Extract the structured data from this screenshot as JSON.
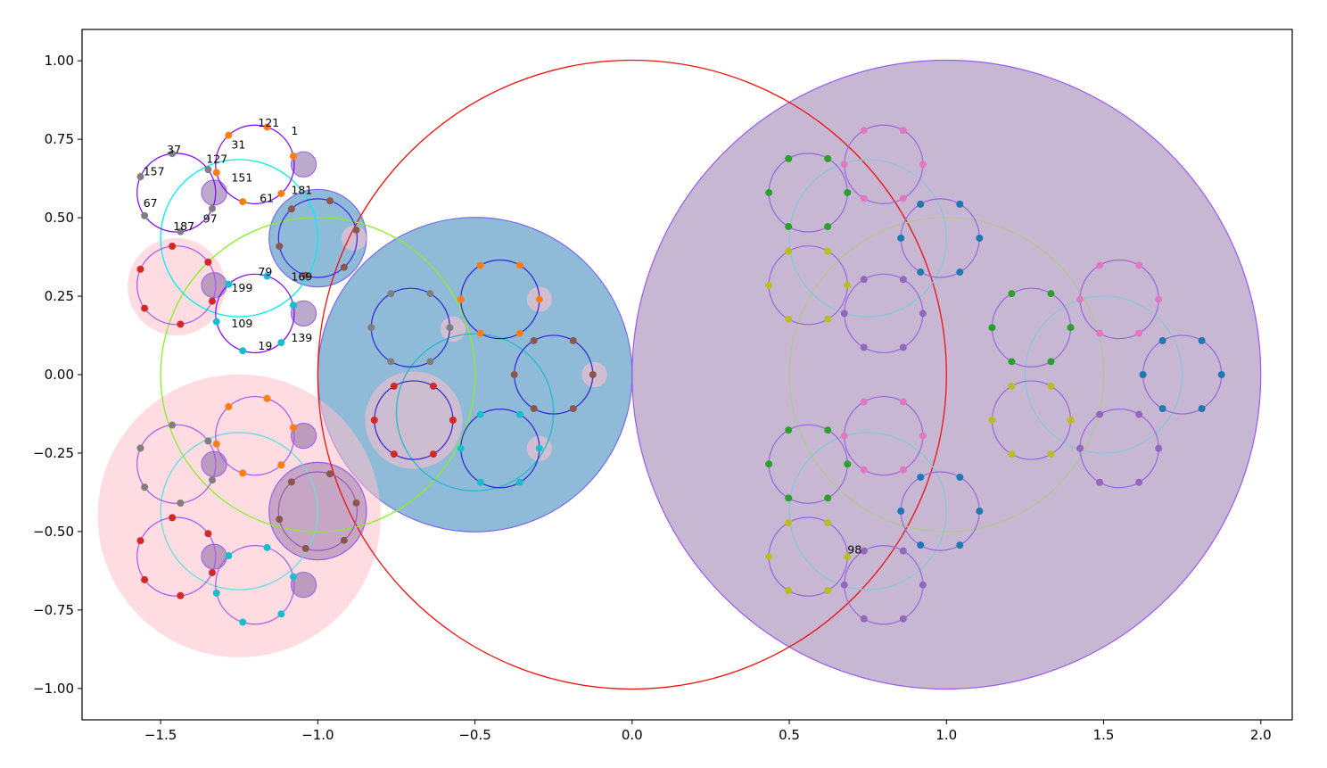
{
  "chart_data": {
    "type": "scatter",
    "title": "",
    "xlabel": "",
    "ylabel": "",
    "xlim": [
      -1.75,
      2.1
    ],
    "ylim": [
      -1.1,
      1.1
    ],
    "grid": false,
    "x_ticks": [
      -1.5,
      -1.0,
      -0.5,
      0.0,
      0.5,
      1.0,
      1.5,
      2.0
    ],
    "x_tick_labels": [
      "−1.5",
      "−1.0",
      "−0.5",
      "0.0",
      "0.5",
      "1.0",
      "1.5",
      "2.0"
    ],
    "y_ticks": [
      1.0,
      0.75,
      0.5,
      0.25,
      0.0,
      -0.25,
      -0.5,
      -0.75,
      -1.0
    ],
    "y_tick_labels": [
      "1.00",
      "0.75",
      "0.50",
      "0.25",
      "0.00",
      "−0.25",
      "−0.50",
      "−0.75",
      "−1.00"
    ],
    "filled_circles": [
      {
        "cx": 1.0,
        "cy": 0.0,
        "r": 1.0,
        "fill": "#8f6fa8",
        "edge": "#9b59f0",
        "alpha": 0.5
      },
      {
        "cx": -0.5,
        "cy": 0.0,
        "r": 0.5,
        "fill": "#1f77b4",
        "edge": "#7b68ee",
        "alpha": 0.5
      },
      {
        "cx": -1.25,
        "cy": -0.45,
        "r": 0.45,
        "fill": "#ffc0cb",
        "edge": "none",
        "alpha": 0.55
      },
      {
        "cx": -1.45,
        "cy": 0.28,
        "r": 0.155,
        "fill": "#ffc0cb",
        "edge": "none",
        "alpha": 0.55
      },
      {
        "cx": -0.695,
        "cy": -0.145,
        "r": 0.155,
        "fill": "#ffc0cb",
        "edge": "none",
        "alpha": 0.55
      },
      {
        "cx": -1.0,
        "cy": 0.435,
        "r": 0.155,
        "fill": "#1f77b4",
        "edge": "#7b68ee",
        "alpha": 0.5
      },
      {
        "cx": -1.0,
        "cy": -0.435,
        "r": 0.155,
        "fill": "#8f6fa8",
        "edge": "#9b59f0",
        "alpha": 0.5
      }
    ],
    "small_disks": [
      {
        "cx": -1.045,
        "cy": 0.67,
        "color": "#8f6fa8"
      },
      {
        "cx": -1.33,
        "cy": 0.58,
        "color": "#8f6fa8"
      },
      {
        "cx": -0.885,
        "cy": 0.435,
        "color": "#ffc0cb"
      },
      {
        "cx": -1.33,
        "cy": 0.285,
        "color": "#8f6fa8"
      },
      {
        "cx": -1.045,
        "cy": 0.195,
        "color": "#8f6fa8"
      },
      {
        "cx": -0.57,
        "cy": 0.145,
        "color": "#ffc0cb"
      },
      {
        "cx": -0.295,
        "cy": 0.24,
        "color": "#ffc0cb"
      },
      {
        "cx": -0.12,
        "cy": 0.0,
        "color": "#ffc0cb"
      },
      {
        "cx": -0.295,
        "cy": -0.235,
        "color": "#ffc0cb"
      },
      {
        "cx": -1.045,
        "cy": -0.195,
        "color": "#8f6fa8"
      },
      {
        "cx": -1.33,
        "cy": -0.285,
        "color": "#8f6fa8"
      },
      {
        "cx": -1.33,
        "cy": -0.58,
        "color": "#8f6fa8"
      },
      {
        "cx": -1.045,
        "cy": -0.67,
        "color": "#8f6fa8"
      }
    ],
    "outline_circles": [
      {
        "cx": 0.0,
        "cy": 0.0,
        "r": 1.0,
        "color": "#ee1111"
      },
      {
        "cx": -1.0,
        "cy": 0.0,
        "r": 0.5,
        "color": "#88ee22"
      },
      {
        "cx": -1.25,
        "cy": 0.435,
        "r": 0.25,
        "color": "#00eeee"
      },
      {
        "cx": -1.25,
        "cy": -0.435,
        "r": 0.25,
        "color": "#66dddd"
      },
      {
        "cx": -0.5,
        "cy": -0.12,
        "r": 0.25,
        "color": "#22bbcc"
      },
      {
        "cx": 1.0,
        "cy": 0.0,
        "r": 0.5,
        "color": "#b0c890"
      },
      {
        "cx": 0.75,
        "cy": 0.435,
        "r": 0.25,
        "color": "#88c8d8"
      },
      {
        "cx": 0.75,
        "cy": -0.435,
        "r": 0.25,
        "color": "#88c8d8"
      },
      {
        "cx": 1.5,
        "cy": 0.0,
        "r": 0.25,
        "color": "#88c8d8"
      }
    ],
    "point_rings": [
      {
        "cx": -1.2,
        "cy": 0.67,
        "r": 0.125,
        "ring": "#7f00ff",
        "start": 1.2566,
        "colors": [
          "#ff7f0e"
        ]
      },
      {
        "cx": -1.45,
        "cy": 0.58,
        "r": 0.125,
        "ring": "#7f00ff",
        "start": 0.6283,
        "colors": [
          "#7f7f7f"
        ]
      },
      {
        "cx": -1.0,
        "cy": 0.435,
        "r": 0.125,
        "ring": "#4422ee",
        "start": 1.2566,
        "colors": [
          "#8c564b"
        ]
      },
      {
        "cx": -1.2,
        "cy": 0.195,
        "r": 0.125,
        "ring": "#7f00ff",
        "start": 1.2566,
        "colors": [
          "#17becf"
        ]
      },
      {
        "cx": -1.45,
        "cy": 0.285,
        "r": 0.125,
        "ring": "#aa55ee",
        "start": 0.6283,
        "colors": [
          "#d62728"
        ]
      },
      {
        "cx": -0.705,
        "cy": 0.15,
        "r": 0.125,
        "ring": "#3322dd",
        "start": 0.0,
        "colors": [
          "#7f7f7f"
        ]
      },
      {
        "cx": -0.42,
        "cy": 0.24,
        "r": 0.125,
        "ring": "#3322dd",
        "start": 0.0,
        "colors": [
          "#ff7f0e"
        ]
      },
      {
        "cx": -0.25,
        "cy": 0.0,
        "r": 0.125,
        "ring": "#3322dd",
        "start": 0.0,
        "colors": [
          "#8c564b"
        ]
      },
      {
        "cx": -0.42,
        "cy": -0.235,
        "r": 0.125,
        "ring": "#3322dd",
        "start": 0.0,
        "colors": [
          "#17becf"
        ]
      },
      {
        "cx": -0.695,
        "cy": -0.145,
        "r": 0.125,
        "ring": "#3322dd",
        "start": 0.0,
        "colors": [
          "#d62728"
        ]
      },
      {
        "cx": -1.2,
        "cy": -0.195,
        "r": 0.125,
        "ring": "#aa55ee",
        "start": 1.2566,
        "colors": [
          "#ff7f0e"
        ]
      },
      {
        "cx": -1.45,
        "cy": -0.285,
        "r": 0.125,
        "ring": "#aa55ee",
        "start": 0.6283,
        "colors": [
          "#7f7f7f"
        ]
      },
      {
        "cx": -1.0,
        "cy": -0.435,
        "r": 0.125,
        "ring": "#9b59b6",
        "start": 1.2566,
        "colors": [
          "#8c564b"
        ]
      },
      {
        "cx": -1.45,
        "cy": -0.58,
        "r": 0.125,
        "ring": "#aa55ee",
        "start": 0.6283,
        "colors": [
          "#d62728"
        ]
      },
      {
        "cx": -1.2,
        "cy": -0.67,
        "r": 0.125,
        "ring": "#aa55ee",
        "start": 1.2566,
        "colors": [
          "#17becf"
        ]
      },
      {
        "cx": 0.56,
        "cy": 0.58,
        "r": 0.125,
        "ring": "#9966dd",
        "start": 0.0,
        "colors": [
          "#2ca02c"
        ]
      },
      {
        "cx": 0.8,
        "cy": 0.67,
        "r": 0.125,
        "ring": "#9966dd",
        "start": 0.0,
        "colors": [
          "#e377c2"
        ]
      },
      {
        "cx": 0.98,
        "cy": 0.435,
        "r": 0.125,
        "ring": "#9966dd",
        "start": 0.0,
        "colors": [
          "#1f77b4"
        ]
      },
      {
        "cx": 0.56,
        "cy": 0.285,
        "r": 0.125,
        "ring": "#9966dd",
        "start": 0.0,
        "colors": [
          "#bcbd22"
        ]
      },
      {
        "cx": 0.8,
        "cy": 0.195,
        "r": 0.125,
        "ring": "#9966dd",
        "start": 0.0,
        "colors": [
          "#9467bd"
        ]
      },
      {
        "cx": 1.27,
        "cy": 0.15,
        "r": 0.125,
        "ring": "#9966dd",
        "start": 0.0,
        "colors": [
          "#2ca02c"
        ]
      },
      {
        "cx": 1.55,
        "cy": 0.24,
        "r": 0.125,
        "ring": "#9966dd",
        "start": 0.0,
        "colors": [
          "#e377c2"
        ]
      },
      {
        "cx": 1.75,
        "cy": 0.0,
        "r": 0.125,
        "ring": "#9966dd",
        "start": 0.0,
        "colors": [
          "#1f77b4"
        ]
      },
      {
        "cx": 1.27,
        "cy": -0.145,
        "r": 0.125,
        "ring": "#9966dd",
        "start": 0.0,
        "colors": [
          "#bcbd22"
        ]
      },
      {
        "cx": 1.55,
        "cy": -0.235,
        "r": 0.125,
        "ring": "#9966dd",
        "start": 0.0,
        "colors": [
          "#9467bd"
        ]
      },
      {
        "cx": 0.56,
        "cy": -0.285,
        "r": 0.125,
        "ring": "#9966dd",
        "start": 0.0,
        "colors": [
          "#2ca02c"
        ]
      },
      {
        "cx": 0.8,
        "cy": -0.195,
        "r": 0.125,
        "ring": "#9966dd",
        "start": 0.0,
        "colors": [
          "#e377c2"
        ]
      },
      {
        "cx": 0.98,
        "cy": -0.435,
        "r": 0.125,
        "ring": "#9966dd",
        "start": 0.0,
        "colors": [
          "#1f77b4"
        ]
      },
      {
        "cx": 0.56,
        "cy": -0.58,
        "r": 0.125,
        "ring": "#9966dd",
        "start": 0.0,
        "colors": [
          "#bcbd22"
        ]
      },
      {
        "cx": 0.8,
        "cy": -0.67,
        "r": 0.125,
        "ring": "#9966dd",
        "start": 0.0,
        "colors": [
          "#9467bd"
        ]
      }
    ],
    "annotations": [
      {
        "text": "121",
        "x": -1.19,
        "y": 0.79
      },
      {
        "text": "1",
        "x": -1.085,
        "y": 0.765
      },
      {
        "text": "31",
        "x": -1.275,
        "y": 0.72
      },
      {
        "text": "37",
        "x": -1.48,
        "y": 0.705
      },
      {
        "text": "127",
        "x": -1.355,
        "y": 0.675
      },
      {
        "text": "157",
        "x": -1.555,
        "y": 0.635
      },
      {
        "text": "151",
        "x": -1.275,
        "y": 0.615
      },
      {
        "text": "61",
        "x": -1.185,
        "y": 0.55
      },
      {
        "text": "181",
        "x": -1.085,
        "y": 0.575
      },
      {
        "text": "67",
        "x": -1.555,
        "y": 0.535
      },
      {
        "text": "97",
        "x": -1.365,
        "y": 0.485
      },
      {
        "text": "187",
        "x": -1.46,
        "y": 0.46
      },
      {
        "text": "79",
        "x": -1.19,
        "y": 0.315
      },
      {
        "text": "169",
        "x": -1.085,
        "y": 0.3
      },
      {
        "text": "199",
        "x": -1.275,
        "y": 0.265
      },
      {
        "text": "109",
        "x": -1.275,
        "y": 0.15
      },
      {
        "text": "139",
        "x": -1.085,
        "y": 0.105
      },
      {
        "text": "19",
        "x": -1.19,
        "y": 0.08
      },
      {
        "text": "98",
        "x": 0.685,
        "y": -0.57
      }
    ]
  }
}
